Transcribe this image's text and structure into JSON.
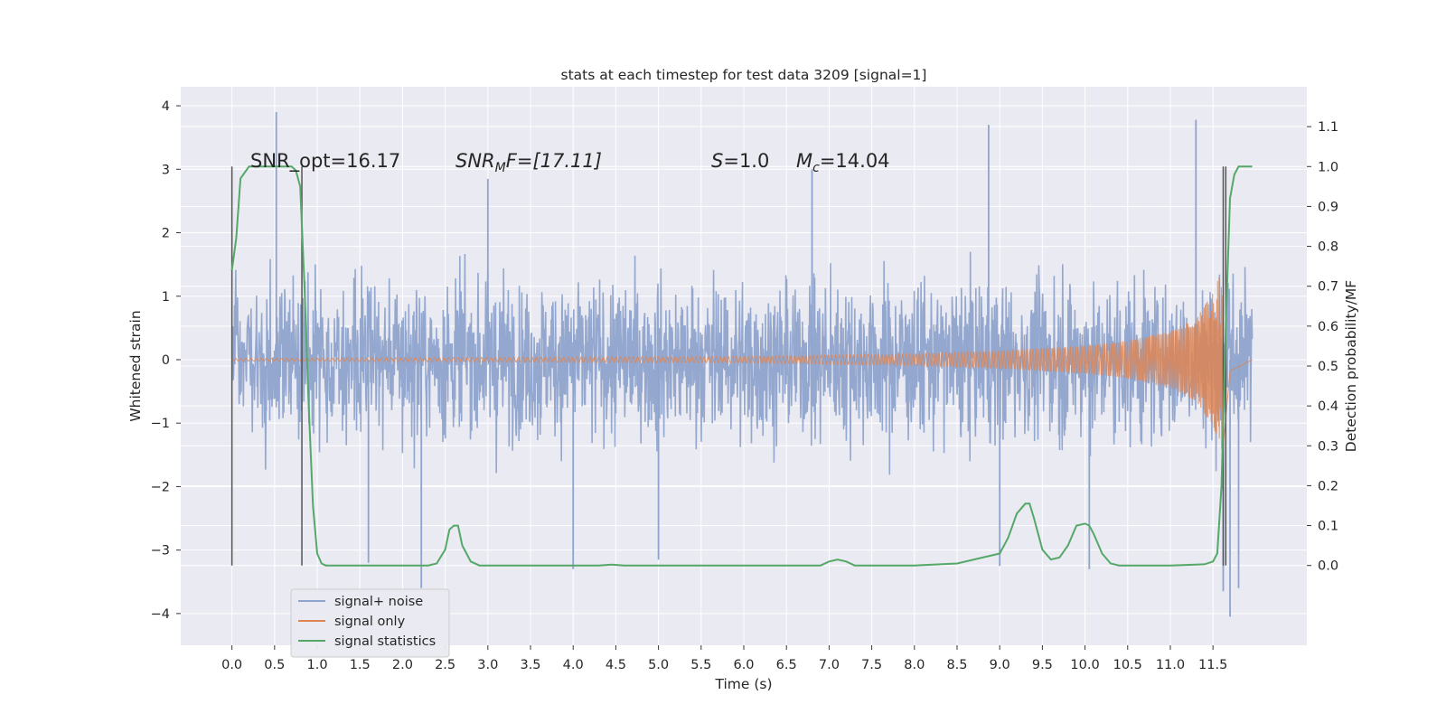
{
  "chart_data": {
    "type": "line",
    "title": "stats at each timestep for test data 3209 [signal=1]",
    "xlabel": "Time (s)",
    "ylabel": "Whitened strain",
    "y2label": "Detection probability/MF",
    "xlim": [
      -0.6,
      12.6
    ],
    "ylim": [
      -4.5,
      4.3
    ],
    "y2lim": [
      -0.2,
      1.2
    ],
    "xticks": [
      0.0,
      0.5,
      1.0,
      1.5,
      2.0,
      2.5,
      3.0,
      3.5,
      4.0,
      4.5,
      5.0,
      5.5,
      6.0,
      6.5,
      7.0,
      7.5,
      8.0,
      8.5,
      9.0,
      9.5,
      10.0,
      10.5,
      11.0,
      11.5
    ],
    "xtick_labels": [
      "0.0",
      "0.5",
      "1.0",
      "1.5",
      "2.0",
      "2.5",
      "3.0",
      "3.5",
      "4.0",
      "4.5",
      "5.0",
      "5.5",
      "6.0",
      "6.5",
      "7.0",
      "7.5",
      "8.0",
      "8.5",
      "9.0",
      "9.5",
      "10.0",
      "10.5",
      "11.0",
      "11.5"
    ],
    "yticks": [
      4,
      3,
      2,
      1,
      0,
      -1,
      -2,
      -3,
      -4
    ],
    "ytick_labels": [
      "4",
      "3",
      "2",
      "1",
      "0",
      "−1",
      "−2",
      "−3",
      "−4"
    ],
    "y2ticks": [
      1.1,
      1.0,
      0.9,
      0.8,
      0.7,
      0.6,
      0.5,
      0.4,
      0.3,
      0.2,
      0.1,
      0.0
    ],
    "y2tick_labels": [
      "1.1",
      "1.0",
      "0.9",
      "0.8",
      "0.7",
      "0.6",
      "0.5",
      "0.4",
      "0.3",
      "0.2",
      "0.1",
      "0.0"
    ],
    "grid": true,
    "legend_position": "lower-left",
    "annotations": [
      "SNR_opt=16.17",
      "SNR",
      "M",
      "F=[17.11]",
      "S",
      "=1.0",
      "M",
      "c",
      "=14.04"
    ],
    "series": [
      {
        "name": "signal+ noise",
        "color": "#8fa4cc",
        "kind": "noise",
        "t_start": 0.0,
        "t_end": 11.96,
        "typical_range": [
          -2.3,
          2.3
        ],
        "extremes": [
          [
            0.52,
            3.9
          ],
          [
            2.22,
            -3.6
          ],
          [
            3.0,
            2.85
          ],
          [
            4.0,
            -3.3
          ],
          [
            6.8,
            3.0
          ],
          [
            8.87,
            3.7
          ],
          [
            9.0,
            -3.25
          ],
          [
            11.3,
            3.78
          ],
          [
            11.62,
            -3.65
          ],
          [
            11.7,
            -4.05
          ],
          [
            11.8,
            -3.6
          ],
          [
            10.05,
            -3.3
          ],
          [
            5.0,
            -3.15
          ],
          [
            1.6,
            -3.2
          ]
        ]
      },
      {
        "name": "signal only",
        "color": "#dd8452",
        "kind": "chirp",
        "t_merger": 11.62,
        "amplitude_at_t": [
          [
            0.0,
            0.02
          ],
          [
            6.0,
            0.05
          ],
          [
            8.0,
            0.09
          ],
          [
            9.0,
            0.14
          ],
          [
            10.0,
            0.22
          ],
          [
            10.5,
            0.3
          ],
          [
            11.0,
            0.45
          ],
          [
            11.3,
            0.65
          ],
          [
            11.5,
            1.05
          ],
          [
            11.6,
            1.4
          ],
          [
            11.62,
            1.5
          ],
          [
            11.7,
            0.2
          ],
          [
            11.96,
            0.0
          ]
        ]
      },
      {
        "name": "signal statistics",
        "color": "#55a868",
        "kind": "line",
        "axis": "right",
        "x": [
          0.0,
          0.05,
          0.1,
          0.2,
          0.3,
          0.5,
          0.7,
          0.75,
          0.8,
          0.85,
          0.9,
          0.95,
          1.0,
          1.05,
          1.1,
          1.2,
          1.5,
          2.0,
          2.3,
          2.4,
          2.5,
          2.55,
          2.6,
          2.65,
          2.7,
          2.8,
          2.9,
          3.0,
          3.5,
          4.0,
          4.3,
          4.45,
          4.6,
          5.0,
          5.5,
          6.0,
          6.5,
          6.9,
          7.0,
          7.1,
          7.2,
          7.3,
          7.5,
          8.0,
          8.5,
          8.8,
          9.0,
          9.1,
          9.2,
          9.3,
          9.35,
          9.4,
          9.5,
          9.6,
          9.7,
          9.8,
          9.9,
          10.0,
          10.05,
          10.1,
          10.2,
          10.3,
          10.4,
          10.6,
          11.0,
          11.4,
          11.5,
          11.55,
          11.6,
          11.65,
          11.7,
          11.75,
          11.8,
          11.9,
          11.96
        ],
        "y": [
          0.74,
          0.82,
          0.97,
          1.0,
          1.0,
          1.0,
          1.0,
          0.99,
          0.95,
          0.7,
          0.4,
          0.15,
          0.03,
          0.005,
          0.0,
          0.0,
          0.0,
          0.0,
          0.0,
          0.005,
          0.04,
          0.09,
          0.1,
          0.1,
          0.05,
          0.01,
          0.0,
          0.0,
          0.0,
          0.0,
          0.0,
          0.002,
          0.0,
          0.0,
          0.0,
          0.0,
          0.0,
          0.0,
          0.01,
          0.015,
          0.01,
          0.0,
          0.0,
          0.0,
          0.005,
          0.02,
          0.03,
          0.07,
          0.13,
          0.155,
          0.155,
          0.12,
          0.04,
          0.015,
          0.02,
          0.05,
          0.1,
          0.105,
          0.1,
          0.08,
          0.03,
          0.005,
          0.0,
          0.0,
          0.0,
          0.003,
          0.01,
          0.03,
          0.2,
          0.6,
          0.92,
          0.98,
          1.0,
          1.0,
          1.0
        ]
      }
    ],
    "vertical_markers": [
      0.0,
      0.82,
      11.62,
      11.65
    ]
  }
}
